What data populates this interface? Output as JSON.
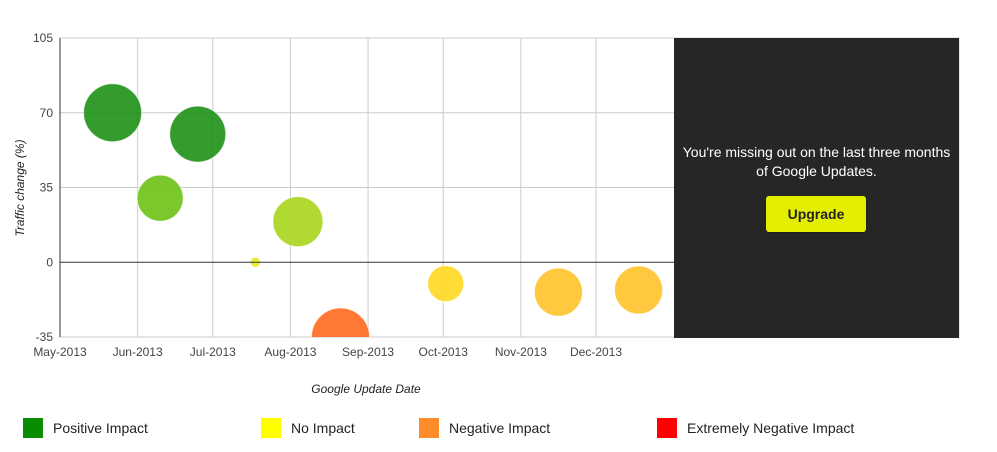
{
  "chart_data": {
    "type": "scatter",
    "xlabel": "Google Update Date",
    "ylabel": "Traffic change (%)",
    "ylim": [
      -35,
      105
    ],
    "yticks": [
      "105",
      "70",
      "35",
      "0",
      "-35"
    ],
    "xlim": [
      "2013-05-01",
      "2014-01-01"
    ],
    "xticks": [
      {
        "date": "2013-05-01",
        "label": "May-2013"
      },
      {
        "date": "2013-06-01",
        "label": "Jun-2013"
      },
      {
        "date": "2013-07-01",
        "label": "Jul-2013"
      },
      {
        "date": "2013-08-01",
        "label": "Aug-2013"
      },
      {
        "date": "2013-09-01",
        "label": "Sep-2013"
      },
      {
        "date": "2013-10-01",
        "label": "Oct-2013"
      },
      {
        "date": "2013-11-01",
        "label": "Nov-2013"
      },
      {
        "date": "2013-12-01",
        "label": "Dec-2013"
      }
    ],
    "points": [
      {
        "x": "2013-05-22",
        "y": 70,
        "color": "#1e9016",
        "r": 29
      },
      {
        "x": "2013-06-10",
        "y": 30,
        "color": "#6cc214",
        "r": 23
      },
      {
        "x": "2013-06-25",
        "y": 60,
        "color": "#1e9016",
        "r": 28
      },
      {
        "x": "2013-07-18",
        "y": 0,
        "color": "#e9ea1e",
        "r": 5
      },
      {
        "x": "2013-08-04",
        "y": 19,
        "color": "#a7d61c",
        "r": 25
      },
      {
        "x": "2013-08-21",
        "y": -35,
        "color": "#ff6a1e",
        "r": 29
      },
      {
        "x": "2013-10-02",
        "y": -10,
        "color": "#ffd81f",
        "r": 18
      },
      {
        "x": "2013-11-16",
        "y": -14,
        "color": "#ffc22a",
        "r": 24
      },
      {
        "x": "2013-12-18",
        "y": -13,
        "color": "#ffc22a",
        "r": 24
      }
    ],
    "grid": true,
    "legend_position": "bottom"
  },
  "overlay": {
    "message": "You're missing out on the last three months of Google Updates.",
    "button_label": "Upgrade",
    "button_color": "#e4ee00"
  },
  "legend": {
    "items": [
      {
        "label": "Positive Impact",
        "color": "#0a8c00"
      },
      {
        "label": "No Impact",
        "color": "#ffff00"
      },
      {
        "label": "Negative Impact",
        "color": "#ff8c2a"
      },
      {
        "label": "Extremely Negative Impact",
        "color": "#ff0000"
      }
    ]
  }
}
